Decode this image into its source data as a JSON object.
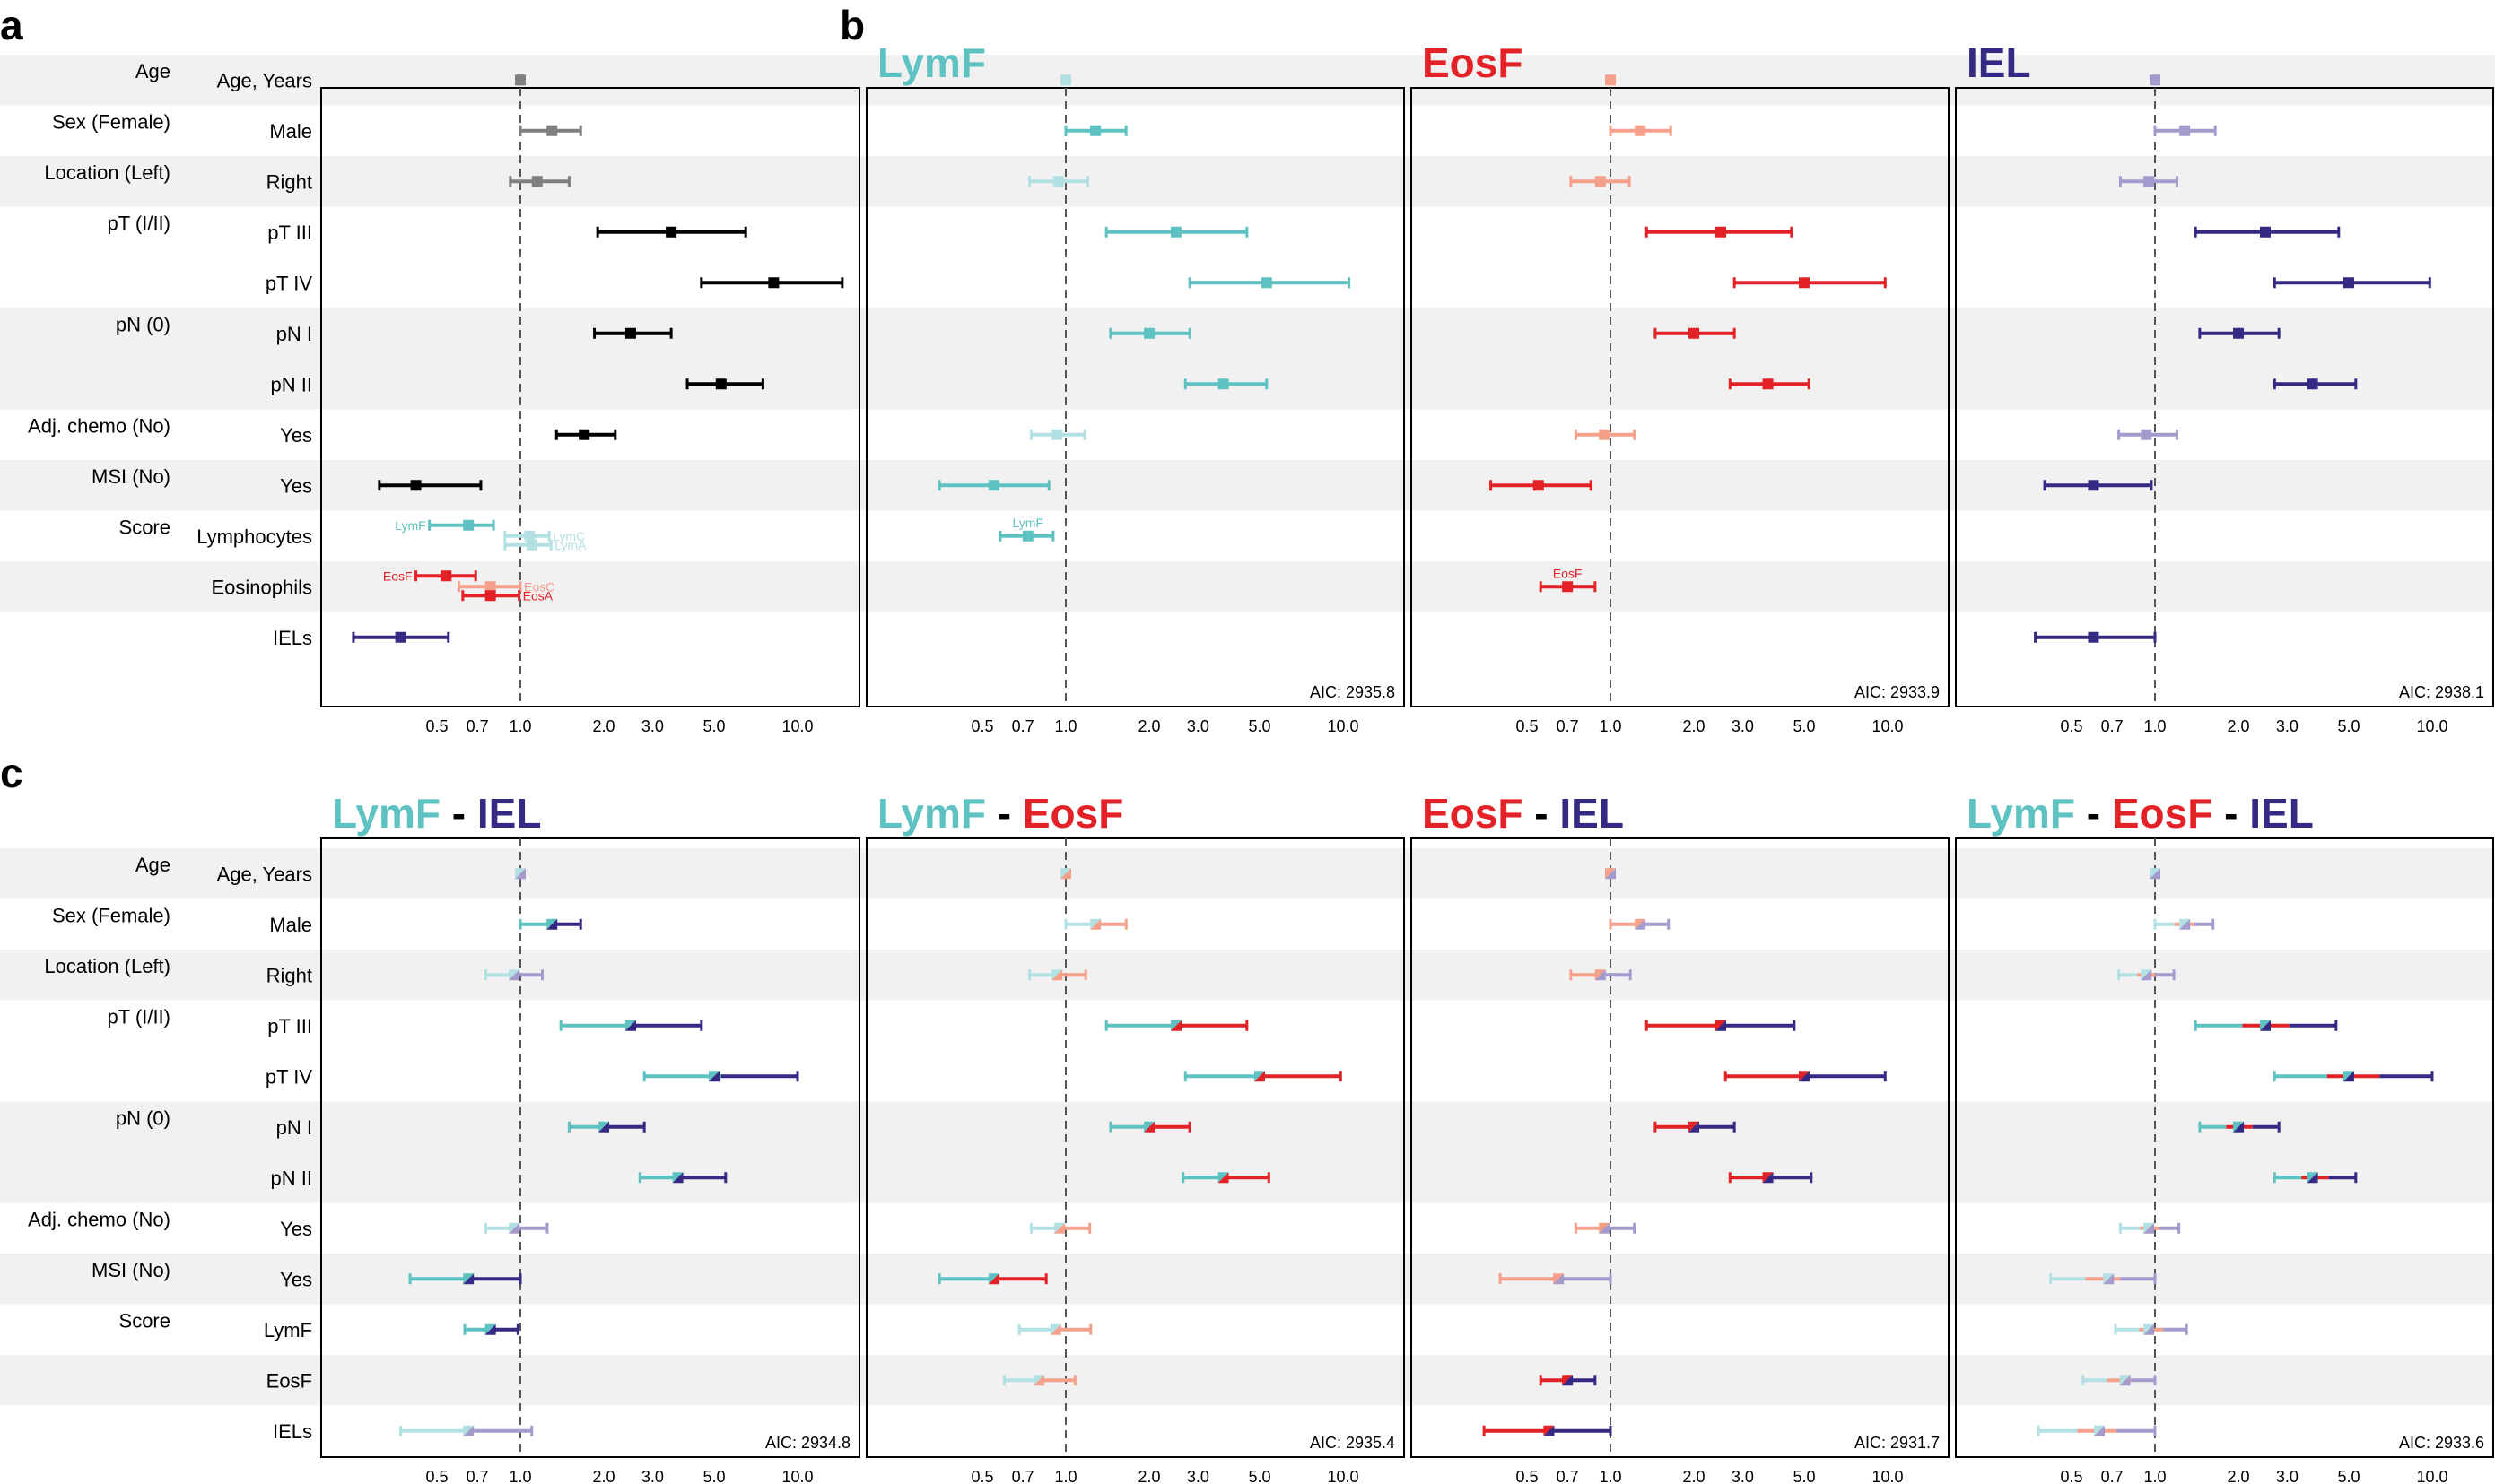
{
  "panels": {
    "a": "a",
    "b": "b",
    "c": "c"
  },
  "colors": {
    "lymf": "#5fc2c2",
    "lymf_light": "#b3e0e2",
    "eosf": "#e32227",
    "eosf_light": "#f4a08a",
    "iel": "#342a83",
    "iel_light": "#a49bcc",
    "grey": "#7f7f7f",
    "black": "#000000",
    "stripe": "#f1f1f1"
  },
  "x_ticks": [
    "0.5",
    "0.7",
    "1.0",
    "2.0",
    "3.0",
    "5.0",
    "10.0"
  ],
  "row_labels_a": [
    "Age, Years",
    "Male",
    "Right",
    "pT III",
    "pT IV",
    "pN I",
    "pN II",
    "Yes",
    "Yes",
    "Lymphocytes",
    "Eosinophils",
    "IELs"
  ],
  "row_labels_c": [
    "Age, Years",
    "Male",
    "Right",
    "pT III",
    "pT IV",
    "pN I",
    "pN II",
    "Yes",
    "Yes",
    "LymF",
    "EosF",
    "IELs"
  ],
  "group_labels": [
    "Age",
    "Sex (Female)",
    "Location (Left)",
    "pT (I/II)",
    "pN (0)",
    "Adj. chemo (No)",
    "MSI (No)",
    "Score"
  ],
  "plot_titles": {
    "b1": [
      "LymF"
    ],
    "b2": [
      "EosF"
    ],
    "b3": [
      "IEL"
    ],
    "c0": [
      "LymF",
      " - ",
      "IEL"
    ],
    "c1": [
      "LymF",
      " - ",
      "EosF"
    ],
    "c2": [
      "EosF",
      " - ",
      "IEL"
    ],
    "c3": [
      "LymF",
      " - ",
      "EosF",
      " - ",
      "IEL"
    ]
  },
  "aic": {
    "b1": "AIC: 2935.8",
    "b2": "AIC: 2933.9",
    "b3": "AIC: 2938.1",
    "c0": "AIC: 2934.8",
    "c1": "AIC: 2935.4",
    "c2": "AIC: 2931.7",
    "c3": "AIC: 2933.6"
  },
  "chart_data": [
    {
      "type": "forest",
      "panel": "a",
      "x_scale": "log",
      "reference_line": 1.0,
      "xlim": [
        0.25,
        12
      ],
      "rows": [
        {
          "row": 0,
          "hr": 1.0,
          "lo": 0.99,
          "hi": 1.01,
          "color": "#7f7f7f"
        },
        {
          "row": 1,
          "hr": 1.3,
          "lo": 1.0,
          "hi": 1.65,
          "color": "#7f7f7f"
        },
        {
          "row": 2,
          "hr": 1.15,
          "lo": 0.92,
          "hi": 1.5,
          "color": "#7f7f7f"
        },
        {
          "row": 3,
          "hr": 3.5,
          "lo": 1.9,
          "hi": 6.5,
          "color": "#000000"
        },
        {
          "row": 4,
          "hr": 8.2,
          "lo": 4.5,
          "hi": 14.5,
          "color": "#000000"
        },
        {
          "row": 5,
          "hr": 2.5,
          "lo": 1.85,
          "hi": 3.5,
          "color": "#000000"
        },
        {
          "row": 6,
          "hr": 5.3,
          "lo": 4.0,
          "hi": 7.5,
          "color": "#000000"
        },
        {
          "row": 7,
          "hr": 1.7,
          "lo": 1.35,
          "hi": 2.2,
          "color": "#000000"
        },
        {
          "row": 8,
          "hr": 0.42,
          "lo": 0.31,
          "hi": 0.72,
          "color": "#000000"
        },
        {
          "row": 9,
          "hr": 0.65,
          "lo": 0.47,
          "hi": 0.8,
          "color": "#5fc2c2",
          "dy": -12,
          "label": "LymF",
          "label_side": "left"
        },
        {
          "row": 9,
          "hr": 1.08,
          "lo": 0.88,
          "hi": 1.27,
          "color": "#b3e0e2",
          "dy": 0,
          "label": "LymC",
          "label_side": "right"
        },
        {
          "row": 9,
          "hr": 1.1,
          "lo": 0.88,
          "hi": 1.29,
          "color": "#b3e0e2",
          "dy": 10,
          "label": "LymA",
          "label_side": "right"
        },
        {
          "row": 10,
          "hr": 0.54,
          "lo": 0.42,
          "hi": 0.69,
          "color": "#e32227",
          "dy": -12,
          "label": "EosF",
          "label_side": "left"
        },
        {
          "row": 10,
          "hr": 0.78,
          "lo": 0.6,
          "hi": 1.0,
          "color": "#f4a08a",
          "dy": 0,
          "label": "EosC",
          "label_side": "right"
        },
        {
          "row": 10,
          "hr": 0.78,
          "lo": 0.62,
          "hi": 0.99,
          "color": "#e32227",
          "dy": 10,
          "label": "EosA",
          "label_side": "right"
        },
        {
          "row": 11,
          "hr": 0.37,
          "lo": 0.25,
          "hi": 0.55,
          "color": "#342a83"
        }
      ]
    },
    {
      "type": "forest",
      "panel": "b1",
      "x_scale": "log",
      "reference_line": 1.0,
      "xlim": [
        0.25,
        12
      ],
      "rows": [
        {
          "row": 0,
          "hr": 1.0,
          "lo": 0.99,
          "hi": 1.01,
          "color": "#b3e0e2"
        },
        {
          "row": 1,
          "hr": 1.28,
          "lo": 1.0,
          "hi": 1.65,
          "color": "#5fc2c2"
        },
        {
          "row": 2,
          "hr": 0.94,
          "lo": 0.74,
          "hi": 1.2,
          "color": "#b3e0e2"
        },
        {
          "row": 3,
          "hr": 2.5,
          "lo": 1.4,
          "hi": 4.5,
          "color": "#5fc2c2"
        },
        {
          "row": 4,
          "hr": 5.3,
          "lo": 2.8,
          "hi": 10.5,
          "color": "#5fc2c2"
        },
        {
          "row": 5,
          "hr": 2.0,
          "lo": 1.45,
          "hi": 2.8,
          "color": "#5fc2c2"
        },
        {
          "row": 6,
          "hr": 3.7,
          "lo": 2.7,
          "hi": 5.3,
          "color": "#5fc2c2"
        },
        {
          "row": 7,
          "hr": 0.93,
          "lo": 0.75,
          "hi": 1.17,
          "color": "#b3e0e2"
        },
        {
          "row": 8,
          "hr": 0.55,
          "lo": 0.35,
          "hi": 0.87,
          "color": "#5fc2c2"
        },
        {
          "row": 9,
          "hr": 0.73,
          "lo": 0.58,
          "hi": 0.9,
          "color": "#5fc2c2",
          "label": "LymF",
          "label_side": "top"
        }
      ]
    },
    {
      "type": "forest",
      "panel": "b2",
      "x_scale": "log",
      "reference_line": 1.0,
      "xlim": [
        0.25,
        12
      ],
      "rows": [
        {
          "row": 0,
          "hr": 1.0,
          "lo": 0.99,
          "hi": 1.01,
          "color": "#f4a08a"
        },
        {
          "row": 1,
          "hr": 1.28,
          "lo": 1.0,
          "hi": 1.65,
          "color": "#f4a08a"
        },
        {
          "row": 2,
          "hr": 0.92,
          "lo": 0.72,
          "hi": 1.17,
          "color": "#f4a08a"
        },
        {
          "row": 3,
          "hr": 2.5,
          "lo": 1.35,
          "hi": 4.5,
          "color": "#e32227"
        },
        {
          "row": 4,
          "hr": 5.0,
          "lo": 2.8,
          "hi": 9.8,
          "color": "#e32227"
        },
        {
          "row": 5,
          "hr": 2.0,
          "lo": 1.45,
          "hi": 2.8,
          "color": "#e32227"
        },
        {
          "row": 6,
          "hr": 3.7,
          "lo": 2.7,
          "hi": 5.2,
          "color": "#e32227"
        },
        {
          "row": 7,
          "hr": 0.95,
          "lo": 0.75,
          "hi": 1.22,
          "color": "#f4a08a"
        },
        {
          "row": 8,
          "hr": 0.55,
          "lo": 0.37,
          "hi": 0.85,
          "color": "#e32227"
        },
        {
          "row": 10,
          "hr": 0.7,
          "lo": 0.56,
          "hi": 0.88,
          "color": "#e32227",
          "label": "EosF",
          "label_side": "top"
        }
      ]
    },
    {
      "type": "forest",
      "panel": "b3",
      "x_scale": "log",
      "reference_line": 1.0,
      "xlim": [
        0.25,
        12
      ],
      "rows": [
        {
          "row": 0,
          "hr": 1.0,
          "lo": 0.99,
          "hi": 1.01,
          "color": "#a49bcc"
        },
        {
          "row": 1,
          "hr": 1.28,
          "lo": 1.0,
          "hi": 1.65,
          "color": "#a49bcc"
        },
        {
          "row": 2,
          "hr": 0.95,
          "lo": 0.75,
          "hi": 1.2,
          "color": "#a49bcc"
        },
        {
          "row": 3,
          "hr": 2.5,
          "lo": 1.4,
          "hi": 4.6,
          "color": "#342a83"
        },
        {
          "row": 4,
          "hr": 5.0,
          "lo": 2.7,
          "hi": 9.8,
          "color": "#342a83"
        },
        {
          "row": 5,
          "hr": 2.0,
          "lo": 1.45,
          "hi": 2.8,
          "color": "#342a83"
        },
        {
          "row": 6,
          "hr": 3.7,
          "lo": 2.7,
          "hi": 5.3,
          "color": "#342a83"
        },
        {
          "row": 7,
          "hr": 0.93,
          "lo": 0.74,
          "hi": 1.2,
          "color": "#a49bcc"
        },
        {
          "row": 8,
          "hr": 0.6,
          "lo": 0.4,
          "hi": 0.97,
          "color": "#342a83"
        },
        {
          "row": 11,
          "hr": 0.6,
          "lo": 0.37,
          "hi": 1.0,
          "color": "#342a83"
        }
      ]
    },
    {
      "type": "forest",
      "panel": "c0",
      "x_scale": "log",
      "reference_line": 1.0,
      "xlim": [
        0.25,
        12
      ],
      "rows": [
        {
          "row": 0,
          "hr": 1.0,
          "lo": 0.99,
          "hi": 1.01,
          "colors": [
            "#b3e0e2",
            "#a49bcc"
          ]
        },
        {
          "row": 1,
          "hr": 1.3,
          "lo": 1.0,
          "hi": 1.65,
          "colors": [
            "#5fc2c2",
            "#342a83"
          ]
        },
        {
          "row": 2,
          "hr": 0.95,
          "lo": 0.75,
          "hi": 1.2,
          "colors": [
            "#b3e0e2",
            "#a49bcc"
          ]
        },
        {
          "row": 3,
          "hr": 2.5,
          "lo": 1.4,
          "hi": 4.5,
          "colors": [
            "#5fc2c2",
            "#342a83"
          ]
        },
        {
          "row": 4,
          "hr": 5.0,
          "lo": 2.8,
          "hi": 10.0,
          "colors": [
            "#5fc2c2",
            "#342a83"
          ]
        },
        {
          "row": 5,
          "hr": 2.0,
          "lo": 1.5,
          "hi": 2.8,
          "colors": [
            "#5fc2c2",
            "#342a83"
          ]
        },
        {
          "row": 6,
          "hr": 3.7,
          "lo": 2.7,
          "hi": 5.5,
          "colors": [
            "#5fc2c2",
            "#342a83"
          ]
        },
        {
          "row": 7,
          "hr": 0.95,
          "lo": 0.75,
          "hi": 1.25,
          "colors": [
            "#b3e0e2",
            "#a49bcc"
          ]
        },
        {
          "row": 8,
          "hr": 0.65,
          "lo": 0.4,
          "hi": 1.0,
          "colors": [
            "#5fc2c2",
            "#342a83"
          ]
        },
        {
          "row": 9,
          "hr": 0.78,
          "lo": 0.63,
          "hi": 0.98,
          "colors": [
            "#5fc2c2",
            "#342a83"
          ]
        },
        {
          "row": 11,
          "hr": 0.65,
          "lo": 0.37,
          "hi": 1.1,
          "colors": [
            "#b3e0e2",
            "#a49bcc"
          ]
        }
      ]
    },
    {
      "type": "forest",
      "panel": "c1",
      "x_scale": "log",
      "reference_line": 1.0,
      "xlim": [
        0.25,
        12
      ],
      "rows": [
        {
          "row": 0,
          "hr": 1.0,
          "lo": 0.99,
          "hi": 1.01,
          "colors": [
            "#b3e0e2",
            "#f4a08a"
          ]
        },
        {
          "row": 1,
          "hr": 1.28,
          "lo": 1.0,
          "hi": 1.65,
          "colors": [
            "#b3e0e2",
            "#f4a08a"
          ]
        },
        {
          "row": 2,
          "hr": 0.93,
          "lo": 0.74,
          "hi": 1.18,
          "colors": [
            "#b3e0e2",
            "#f4a08a"
          ]
        },
        {
          "row": 3,
          "hr": 2.5,
          "lo": 1.4,
          "hi": 4.5,
          "colors": [
            "#5fc2c2",
            "#e32227"
          ]
        },
        {
          "row": 4,
          "hr": 5.0,
          "lo": 2.7,
          "hi": 9.8,
          "colors": [
            "#5fc2c2",
            "#e32227"
          ]
        },
        {
          "row": 5,
          "hr": 2.0,
          "lo": 1.45,
          "hi": 2.8,
          "colors": [
            "#5fc2c2",
            "#e32227"
          ]
        },
        {
          "row": 6,
          "hr": 3.7,
          "lo": 2.65,
          "hi": 5.4,
          "colors": [
            "#5fc2c2",
            "#e32227"
          ]
        },
        {
          "row": 7,
          "hr": 0.95,
          "lo": 0.75,
          "hi": 1.22,
          "colors": [
            "#b3e0e2",
            "#f4a08a"
          ]
        },
        {
          "row": 8,
          "hr": 0.55,
          "lo": 0.35,
          "hi": 0.85,
          "colors": [
            "#5fc2c2",
            "#e32227"
          ]
        },
        {
          "row": 9,
          "hr": 0.92,
          "lo": 0.68,
          "hi": 1.23,
          "colors": [
            "#b3e0e2",
            "#f4a08a"
          ]
        },
        {
          "row": 10,
          "hr": 0.8,
          "lo": 0.6,
          "hi": 1.08,
          "colors": [
            "#b3e0e2",
            "#f4a08a"
          ]
        }
      ]
    },
    {
      "type": "forest",
      "panel": "c2",
      "x_scale": "log",
      "reference_line": 1.0,
      "xlim": [
        0.25,
        12
      ],
      "rows": [
        {
          "row": 0,
          "hr": 1.0,
          "lo": 0.99,
          "hi": 1.01,
          "colors": [
            "#f4a08a",
            "#a49bcc"
          ]
        },
        {
          "row": 1,
          "hr": 1.28,
          "lo": 1.0,
          "hi": 1.62,
          "colors": [
            "#f4a08a",
            "#a49bcc"
          ]
        },
        {
          "row": 2,
          "hr": 0.92,
          "lo": 0.72,
          "hi": 1.18,
          "colors": [
            "#f4a08a",
            "#a49bcc"
          ]
        },
        {
          "row": 3,
          "hr": 2.5,
          "lo": 1.35,
          "hi": 4.6,
          "colors": [
            "#e32227",
            "#342a83"
          ]
        },
        {
          "row": 4,
          "hr": 5.0,
          "lo": 2.6,
          "hi": 9.8,
          "colors": [
            "#e32227",
            "#342a83"
          ]
        },
        {
          "row": 5,
          "hr": 2.0,
          "lo": 1.45,
          "hi": 2.8,
          "colors": [
            "#e32227",
            "#342a83"
          ]
        },
        {
          "row": 6,
          "hr": 3.7,
          "lo": 2.7,
          "hi": 5.3,
          "colors": [
            "#e32227",
            "#342a83"
          ]
        },
        {
          "row": 7,
          "hr": 0.95,
          "lo": 0.75,
          "hi": 1.22,
          "colors": [
            "#f4a08a",
            "#a49bcc"
          ]
        },
        {
          "row": 8,
          "hr": 0.65,
          "lo": 0.4,
          "hi": 1.0,
          "colors": [
            "#f4a08a",
            "#a49bcc"
          ]
        },
        {
          "row": 10,
          "hr": 0.7,
          "lo": 0.56,
          "hi": 0.88,
          "colors": [
            "#e32227",
            "#342a83"
          ]
        },
        {
          "row": 11,
          "hr": 0.6,
          "lo": 0.35,
          "hi": 1.0,
          "colors": [
            "#e32227",
            "#342a83"
          ]
        }
      ]
    },
    {
      "type": "forest",
      "panel": "c3",
      "x_scale": "log",
      "reference_line": 1.0,
      "xlim": [
        0.25,
        12
      ],
      "rows": [
        {
          "row": 0,
          "hr": 1.0,
          "lo": 0.99,
          "hi": 1.01,
          "colors": [
            "#b3e0e2",
            "#f4a08a",
            "#a49bcc"
          ]
        },
        {
          "row": 1,
          "hr": 1.28,
          "lo": 1.0,
          "hi": 1.62,
          "colors": [
            "#b3e0e2",
            "#f4a08a",
            "#a49bcc"
          ]
        },
        {
          "row": 2,
          "hr": 0.93,
          "lo": 0.74,
          "hi": 1.17,
          "colors": [
            "#b3e0e2",
            "#f4a08a",
            "#a49bcc"
          ]
        },
        {
          "row": 3,
          "hr": 2.5,
          "lo": 1.4,
          "hi": 4.5,
          "colors": [
            "#5fc2c2",
            "#e32227",
            "#342a83"
          ]
        },
        {
          "row": 4,
          "hr": 5.0,
          "lo": 2.7,
          "hi": 10.0,
          "colors": [
            "#5fc2c2",
            "#e32227",
            "#342a83"
          ]
        },
        {
          "row": 5,
          "hr": 2.0,
          "lo": 1.45,
          "hi": 2.8,
          "colors": [
            "#5fc2c2",
            "#e32227",
            "#342a83"
          ]
        },
        {
          "row": 6,
          "hr": 3.7,
          "lo": 2.7,
          "hi": 5.3,
          "colors": [
            "#5fc2c2",
            "#e32227",
            "#342a83"
          ]
        },
        {
          "row": 7,
          "hr": 0.95,
          "lo": 0.75,
          "hi": 1.22,
          "colors": [
            "#b3e0e2",
            "#f4a08a",
            "#a49bcc"
          ]
        },
        {
          "row": 8,
          "hr": 0.68,
          "lo": 0.42,
          "hi": 1.0,
          "colors": [
            "#b3e0e2",
            "#f4a08a",
            "#a49bcc"
          ]
        },
        {
          "row": 9,
          "hr": 0.95,
          "lo": 0.72,
          "hi": 1.3,
          "colors": [
            "#b3e0e2",
            "#f4a08a",
            "#a49bcc"
          ]
        },
        {
          "row": 10,
          "hr": 0.78,
          "lo": 0.55,
          "hi": 1.0,
          "colors": [
            "#b3e0e2",
            "#f4a08a",
            "#a49bcc"
          ]
        },
        {
          "row": 11,
          "hr": 0.63,
          "lo": 0.38,
          "hi": 1.0,
          "colors": [
            "#b3e0e2",
            "#f4a08a",
            "#a49bcc"
          ]
        }
      ]
    }
  ]
}
